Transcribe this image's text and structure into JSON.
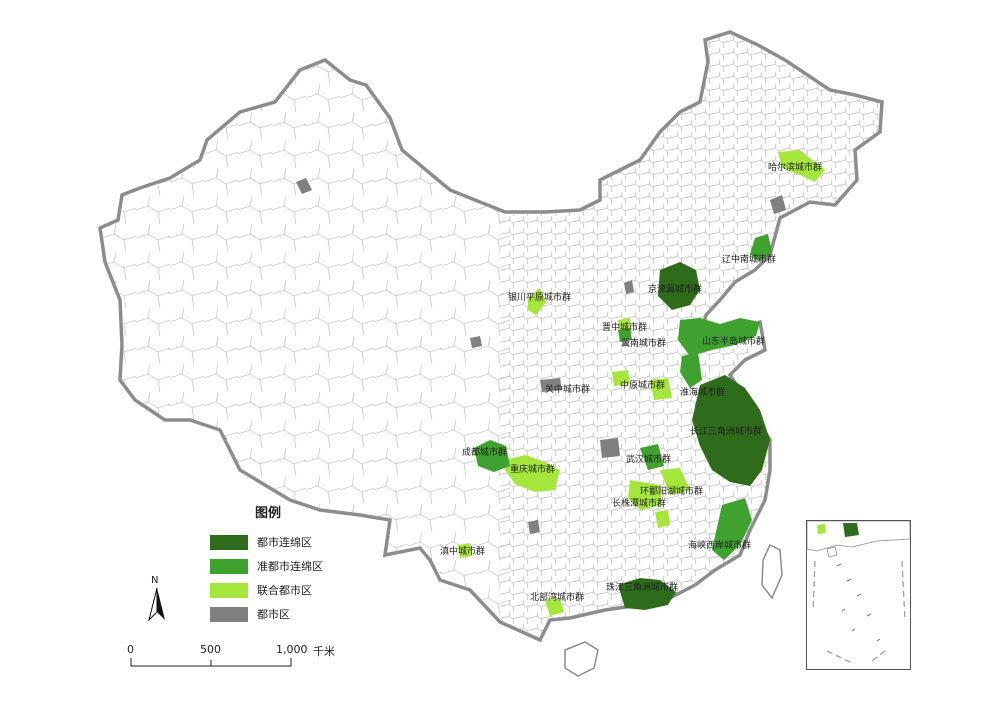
{
  "legend": {
    "title": "图例",
    "items": [
      {
        "label": "都市连绵区",
        "color": "#2e6b1a"
      },
      {
        "label": "准都市连绵区",
        "color": "#3fa12e"
      },
      {
        "label": "联合都市区",
        "color": "#a4e63c"
      },
      {
        "label": "都市区",
        "color": "#808080"
      }
    ]
  },
  "north_arrow": {
    "label": "N"
  },
  "scale_bar": {
    "ticks": [
      "0",
      "500",
      "1,000"
    ],
    "unit": "千米"
  },
  "regions": [
    {
      "name": "哈尔滨城市群",
      "category": "联合都市区"
    },
    {
      "name": "辽中南城市群",
      "category": "准都市连绵区"
    },
    {
      "name": "京津冀城市群",
      "category": "都市连绵区"
    },
    {
      "name": "银川平原城市群",
      "category": "联合都市区"
    },
    {
      "name": "晋中城市群",
      "category": "准都市连绵区"
    },
    {
      "name": "冀南城市群",
      "category": "联合都市区"
    },
    {
      "name": "山东半岛城市群",
      "category": "准都市连绵区"
    },
    {
      "name": "中原城市群",
      "category": "联合都市区"
    },
    {
      "name": "关中城市群",
      "category": "都市区"
    },
    {
      "name": "淮海城市群",
      "category": "联合都市区"
    },
    {
      "name": "长江三角洲城市群",
      "category": "都市连绵区"
    },
    {
      "name": "成都城市群",
      "category": "准都市连绵区"
    },
    {
      "name": "重庆城市群",
      "category": "联合都市区"
    },
    {
      "name": "武汉城市群",
      "category": "准都市连绵区"
    },
    {
      "name": "环鄱阳湖城市群",
      "category": "联合都市区"
    },
    {
      "name": "长株潭城市群",
      "category": "联合都市区"
    },
    {
      "name": "海峡西岸城市群",
      "category": "准都市连绵区"
    },
    {
      "name": "滇中城市群",
      "category": "联合都市区"
    },
    {
      "name": "珠江三角洲城市群",
      "category": "都市连绵区"
    },
    {
      "name": "北部湾城市群",
      "category": "联合都市区"
    }
  ]
}
